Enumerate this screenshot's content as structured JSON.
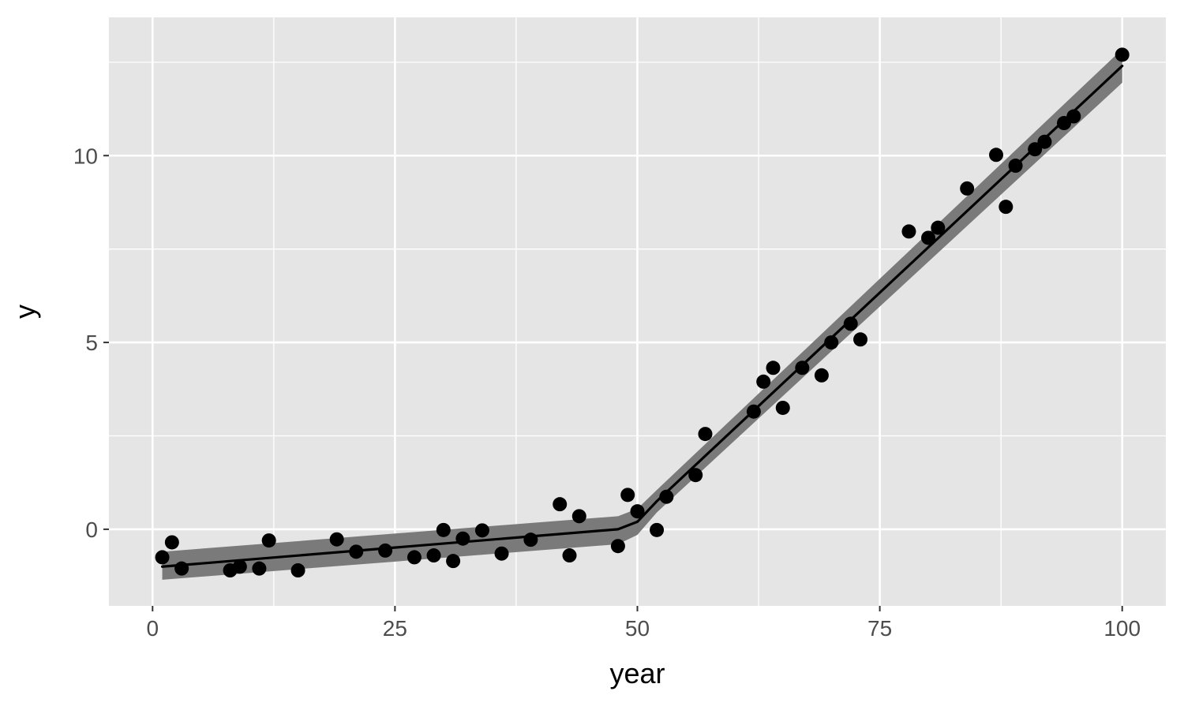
{
  "chart_data": {
    "type": "scatter",
    "title": "",
    "xlabel": "year",
    "ylabel": "y",
    "xlim": [
      -4.5,
      104.5
    ],
    "ylim": [
      -2.05,
      13.7
    ],
    "x_ticks": [
      0,
      25,
      50,
      75,
      100
    ],
    "x_tick_labels": [
      "0",
      "25",
      "50",
      "75",
      "100"
    ],
    "y_ticks": [
      0,
      5,
      10
    ],
    "y_tick_labels": [
      "0",
      "5",
      "10"
    ],
    "x_minor_ticks": [
      12.5,
      37.5,
      62.5,
      87.5
    ],
    "y_minor_ticks": [
      -2.5,
      2.5,
      7.5,
      12.5
    ],
    "grid": true,
    "legend": "none",
    "colors": {
      "panel_background": "#e5e5e5",
      "grid_line": "#ffffff",
      "point": "#000000",
      "fit_line": "#000000",
      "confidence_band": "#7a7a7a"
    },
    "series": [
      {
        "kind": "points",
        "x": [
          1,
          2,
          3,
          8,
          9,
          11,
          12,
          15,
          19,
          21,
          24,
          27,
          29,
          30,
          31,
          32,
          34,
          36,
          39,
          42,
          43,
          44,
          48,
          49,
          50,
          52,
          53,
          56,
          57,
          62,
          63,
          64,
          65,
          67,
          69,
          70,
          72,
          73,
          78,
          80,
          81,
          84,
          87,
          88,
          89,
          91,
          92,
          94,
          95,
          100
        ],
        "y": [
          -0.75,
          -0.35,
          -1.05,
          -1.1,
          -1.0,
          -1.05,
          -0.3,
          -1.1,
          -0.27,
          -0.6,
          -0.57,
          -0.75,
          -0.7,
          -0.02,
          -0.85,
          -0.25,
          -0.03,
          -0.65,
          -0.28,
          0.67,
          -0.7,
          0.35,
          -0.45,
          0.92,
          0.48,
          -0.02,
          0.87,
          1.45,
          2.55,
          3.15,
          3.95,
          4.32,
          3.25,
          4.32,
          4.12,
          5.0,
          5.5,
          5.08,
          7.97,
          7.8,
          8.07,
          9.12,
          10.02,
          8.63,
          9.73,
          10.17,
          10.37,
          10.87,
          11.05,
          12.7
        ]
      },
      {
        "kind": "fit-line",
        "x": [
          1,
          48,
          50,
          52,
          100
        ],
        "y": [
          -1.0,
          0.0,
          0.2,
          0.75,
          12.4
        ]
      },
      {
        "kind": "confidence-band",
        "x": [
          1,
          48,
          50,
          52,
          100
        ],
        "upper": [
          -0.6,
          0.35,
          0.55,
          1.05,
          12.85
        ],
        "lower": [
          -1.35,
          -0.4,
          -0.15,
          0.45,
          11.95
        ]
      }
    ]
  }
}
